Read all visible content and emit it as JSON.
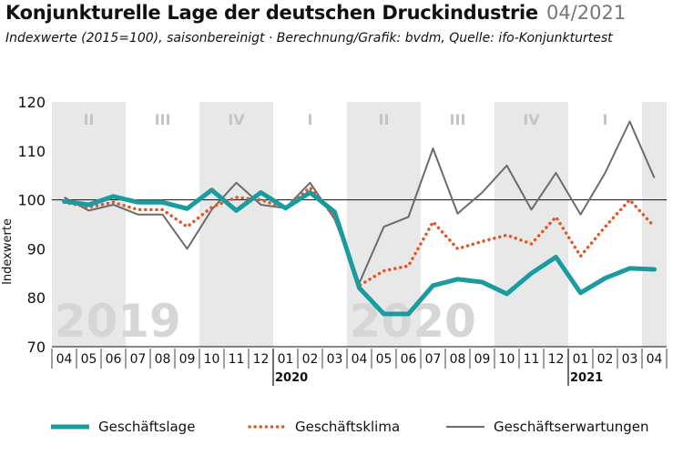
{
  "header": {
    "title": "Konjunkturelle Lage der deutschen Druckindustrie",
    "date": "04/2021",
    "subtitle": "Indexwerte (2015=100), saisonbereinigt · Berechnung/Grafik: bvdm, Quelle: ifo-Konjunkturtest"
  },
  "colors": {
    "geschaeftslage": "#1a9ba0",
    "geschaeftsklima": "#e0572a",
    "geschaeftserwartungen": "#6b6b6b",
    "quarter_band": "#e8e8e8",
    "year_watermark": "#d6d6d6",
    "quarter_label": "#c4c4c4"
  },
  "chart_data": {
    "type": "line",
    "title": "Konjunkturelle Lage der deutschen Druckindustrie",
    "ylabel": "Indexwerte",
    "ylim": [
      70,
      120
    ],
    "yticks": [
      70,
      80,
      90,
      100,
      110,
      120
    ],
    "grid": false,
    "legend_position": "bottom",
    "categories": [
      "04",
      "05",
      "06",
      "07",
      "08",
      "09",
      "10",
      "11",
      "12",
      "01",
      "02",
      "03",
      "04",
      "05",
      "06",
      "07",
      "08",
      "09",
      "10",
      "11",
      "12",
      "01",
      "02",
      "03",
      "04"
    ],
    "year_labels": [
      {
        "label": "2020",
        "at_index": 9
      },
      {
        "label": "2021",
        "at_index": 21
      }
    ],
    "quarter_labels": [
      "II",
      "III",
      "IV",
      "I",
      "II",
      "III",
      "IV",
      "I"
    ],
    "year_watermarks": [
      "2019",
      "2020"
    ],
    "series": [
      {
        "name": "Geschäftslage",
        "style": "solid-thick",
        "values": [
          99.7,
          99.0,
          100.7,
          99.5,
          99.5,
          98.2,
          102.0,
          97.8,
          101.5,
          98.3,
          101.5,
          97.5,
          82.0,
          76.7,
          76.7,
          82.5,
          83.8,
          83.2,
          80.8,
          85.0,
          88.3,
          81.0,
          84.0,
          86.0,
          85.8
        ]
      },
      {
        "name": "Geschäftsklima",
        "style": "dotted",
        "values": [
          99.5,
          98.5,
          99.5,
          98.0,
          98.0,
          94.5,
          98.5,
          100.5,
          100.0,
          98.3,
          102.5,
          96.5,
          82.5,
          85.5,
          86.5,
          95.5,
          90.0,
          91.5,
          92.8,
          91.0,
          96.5,
          88.5,
          94.5,
          100.0,
          94.5
        ]
      },
      {
        "name": "Geschäftserwartungen",
        "style": "solid-thin",
        "values": [
          100.5,
          97.8,
          99.0,
          97.0,
          97.0,
          90.0,
          98.0,
          103.5,
          99.0,
          98.3,
          103.5,
          96.0,
          83.0,
          94.5,
          96.5,
          110.5,
          97.2,
          101.5,
          107.0,
          98.0,
          105.5,
          97.0,
          105.5,
          116.0,
          104.5
        ]
      }
    ]
  }
}
